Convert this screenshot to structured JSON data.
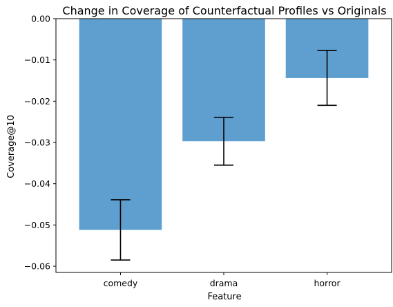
{
  "chart_data": {
    "type": "bar",
    "title": "Change in Coverage of Counterfactual Profiles vs Originals",
    "xlabel": "Feature",
    "ylabel": "Coverage@10",
    "categories": [
      "comedy",
      "drama",
      "horror"
    ],
    "values": [
      -0.0512,
      -0.0297,
      -0.0144
    ],
    "error_low": [
      -0.0585,
      -0.0355,
      -0.021
    ],
    "error_high": [
      -0.0439,
      -0.0239,
      -0.0077
    ],
    "ylim": [
      -0.0615,
      0.0
    ],
    "yticks": [
      0.0,
      -0.01,
      -0.02,
      -0.03,
      -0.04,
      -0.05,
      -0.06
    ],
    "ytick_labels": [
      "0.00",
      "−0.01",
      "−0.02",
      "−0.03",
      "−0.04",
      "−0.05",
      "−0.06"
    ],
    "grid": false,
    "bar_color": "#5f9fd0",
    "error_color": "#000000"
  }
}
